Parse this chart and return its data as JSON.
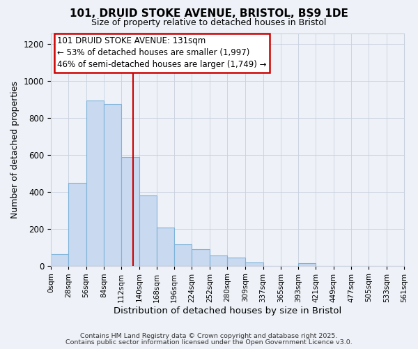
{
  "title": "101, DRUID STOKE AVENUE, BRISTOL, BS9 1DE",
  "subtitle": "Size of property relative to detached houses in Bristol",
  "xlabel": "Distribution of detached houses by size in Bristol",
  "ylabel": "Number of detached properties",
  "bin_edges": [
    0,
    28,
    56,
    84,
    112,
    140,
    168,
    196,
    224,
    252,
    280,
    309,
    337,
    365,
    393,
    421,
    449,
    477,
    505,
    533,
    561
  ],
  "bin_labels": [
    "0sqm",
    "28sqm",
    "56sqm",
    "84sqm",
    "112sqm",
    "140sqm",
    "168sqm",
    "196sqm",
    "224sqm",
    "252sqm",
    "280sqm",
    "309sqm",
    "337sqm",
    "365sqm",
    "393sqm",
    "421sqm",
    "449sqm",
    "477sqm",
    "505sqm",
    "533sqm",
    "561sqm"
  ],
  "counts": [
    65,
    450,
    895,
    875,
    590,
    380,
    205,
    115,
    90,
    55,
    45,
    18,
    0,
    0,
    15,
    0,
    0,
    0,
    0,
    0
  ],
  "bar_facecolor": "#c8d9f0",
  "bar_edgecolor": "#7fb3d9",
  "grid_color": "#c8d0de",
  "bg_color": "#eef2f8",
  "vline_x": 131,
  "vline_color": "#cc0000",
  "annotation_title": "101 DRUID STOKE AVENUE: 131sqm",
  "annotation_line1": "← 53% of detached houses are smaller (1,997)",
  "annotation_line2": "46% of semi-detached houses are larger (1,749) →",
  "annotation_box_edgecolor": "#cc0000",
  "footer_line1": "Contains HM Land Registry data © Crown copyright and database right 2025.",
  "footer_line2": "Contains public sector information licensed under the Open Government Licence v3.0.",
  "ylim": [
    0,
    1260
  ],
  "yticks": [
    0,
    200,
    400,
    600,
    800,
    1000,
    1200
  ]
}
